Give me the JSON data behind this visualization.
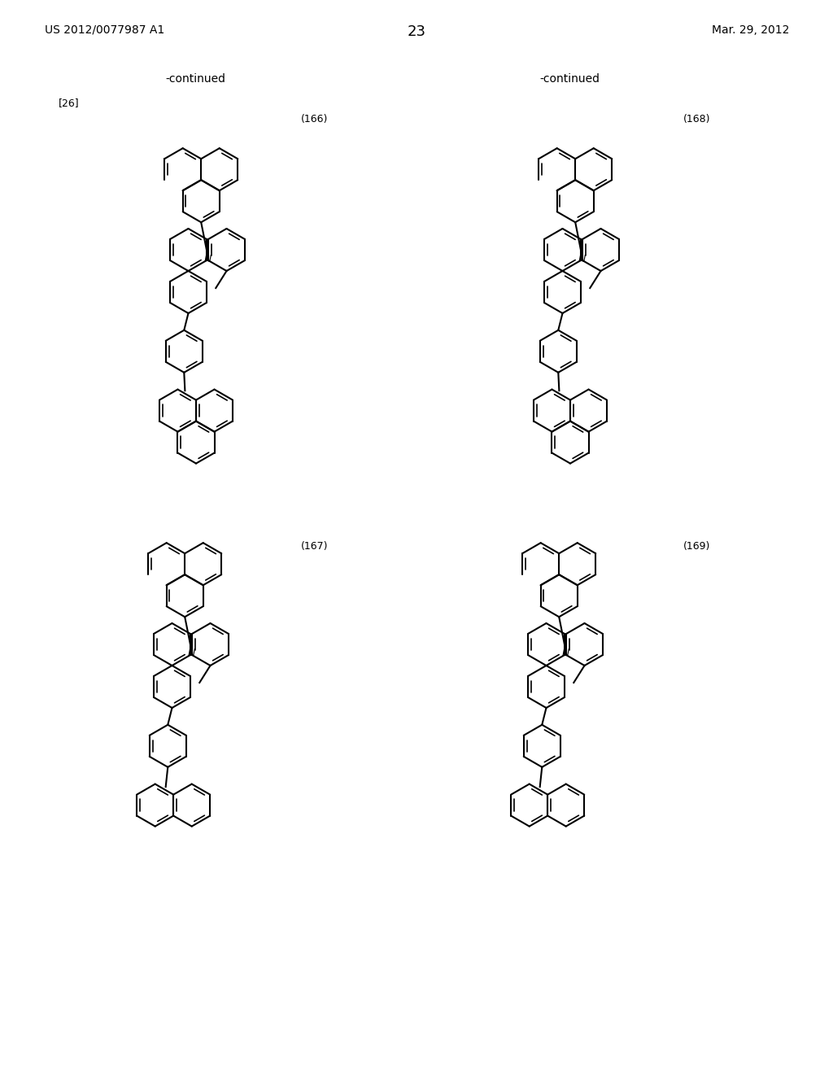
{
  "background_color": "#ffffff",
  "header_left": "US 2012/0077987 A1",
  "header_right": "Mar. 29, 2012",
  "page_number": "23",
  "label_26": "[26]",
  "compounds": [
    "(166)",
    "(168)",
    "(167)",
    "(169)"
  ]
}
